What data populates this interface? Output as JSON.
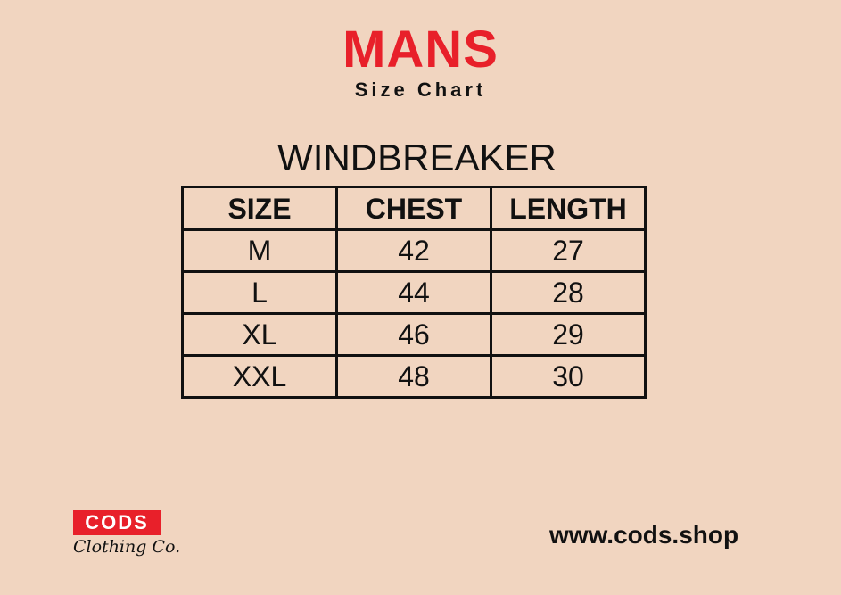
{
  "header": {
    "title": "MANS",
    "subtitle": "Size Chart"
  },
  "product": "WINDBREAKER",
  "table": {
    "headers": [
      "SIZE",
      "CHEST",
      "LENGTH"
    ],
    "rows": [
      [
        "M",
        "42",
        "27"
      ],
      [
        "L",
        "44",
        "28"
      ],
      [
        "XL",
        "46",
        "29"
      ],
      [
        "XXL",
        "48",
        "30"
      ]
    ]
  },
  "logo": {
    "brand": "CODS",
    "tagline": "Clothing Co."
  },
  "footer": {
    "url": "www.cods.shop"
  },
  "colors": {
    "background": "#f1d5c0",
    "accent": "#e8202a"
  }
}
